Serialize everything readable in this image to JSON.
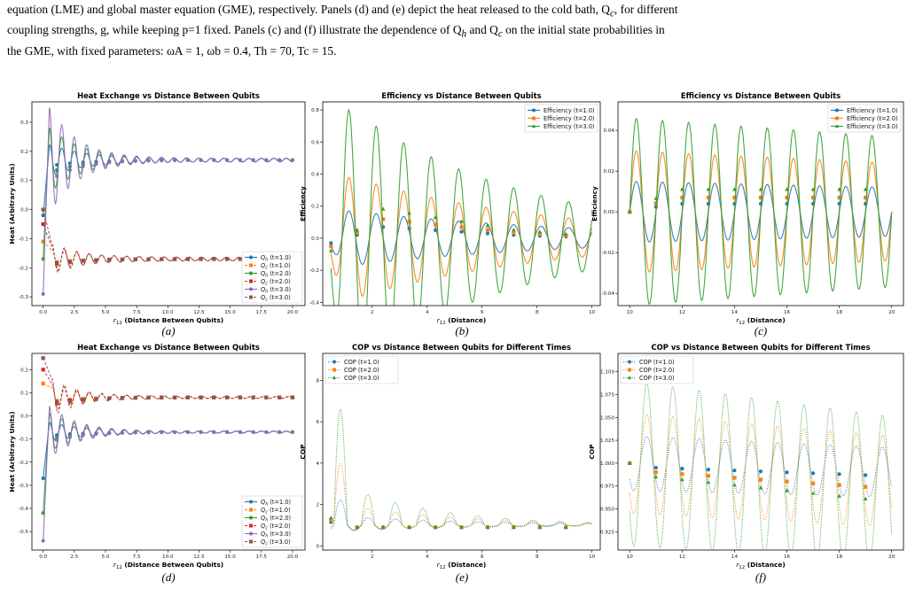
{
  "caption": {
    "line1": "equation (LME) and global master equation (GME), respectively. Panels (d) and (e) depict the heat released to the cold bath, Q",
    "line1_sub": "c",
    "line1_end": ", for different",
    "line2": "coupling strengths, g, while keeping p=1 fixed. Panels (c) and (f) illustrate the dependence of Q",
    "line2_sub1": "h",
    "line2_mid": " and Q",
    "line2_sub2": "c",
    "line2_end": " on the initial state probabilities in",
    "line3": "the GME, with fixed parameters: ω",
    "line3_rest": "A = 1, ω",
    "line3_rest2": "b = 0.4, T",
    "line3_rest3": "h = 70, T",
    "line3_rest4": "c = 15."
  },
  "colors": {
    "blue": "#1f77b4",
    "orange": "#ff7f0e",
    "green": "#2ca02c",
    "red": "#d62728",
    "purple": "#9467bd",
    "brown": "#8c564b"
  },
  "panel_labels": [
    "(a)",
    "(b)",
    "(c)",
    "(d)",
    "(e)",
    "(f)"
  ],
  "chart_data": [
    {
      "id": "a",
      "type": "line",
      "title": "Heat Exchange vs Distance Between Qubits",
      "xlabel": "r12 (Distance Between Qubits)",
      "ylabel": "Heat (Arbitrary Units)",
      "xlim": [
        -0.9,
        21
      ],
      "ylim": [
        -0.33,
        0.37
      ],
      "xticks": [
        0.0,
        2.5,
        5.0,
        7.5,
        10.0,
        12.5,
        15.0,
        17.5,
        20.0
      ],
      "xticklabels": [
        "0.0",
        "2.5",
        "5.0",
        "7.5",
        "10.0",
        "12.5",
        "15.0",
        "17.5",
        "20.0"
      ],
      "yticks": [
        -0.3,
        -0.2,
        -0.1,
        0.0,
        0.1,
        0.2,
        0.3
      ],
      "yticklabels": [
        "-0.3",
        "-0.2",
        "-0.1",
        "0.0",
        "0.1",
        "0.2",
        "0.3"
      ],
      "legend_pos": "lower-right",
      "series": [
        {
          "name": "Qh (t=1.0)",
          "color": "blue",
          "marker": "circle",
          "dash": "solid",
          "start": -0.02,
          "base": 0.17,
          "amp": 0.05,
          "decay": 0.35,
          "period": 1.0,
          "peak_x": 0.5
        },
        {
          "name": "Qc (t=1.0)",
          "color": "orange",
          "marker": "square",
          "dash": "dash",
          "start": -0.11,
          "base": -0.17,
          "amp": 0.03,
          "decay": 0.35,
          "period": 1.0,
          "peak_x": 0.7
        },
        {
          "name": "Qh (t=2.0)",
          "color": "green",
          "marker": "circle",
          "dash": "solid",
          "start": -0.17,
          "base": 0.17,
          "amp": 0.11,
          "decay": 0.4,
          "period": 1.0,
          "peak_x": 0.5
        },
        {
          "name": "Qc (t=2.0)",
          "color": "red",
          "marker": "square",
          "dash": "dash",
          "start": -0.05,
          "base": -0.17,
          "amp": 0.04,
          "decay": 0.4,
          "period": 1.0,
          "peak_x": 0.7
        },
        {
          "name": "Qh (t=3.0)",
          "color": "purple",
          "marker": "circle",
          "dash": "solid",
          "start": -0.29,
          "base": 0.17,
          "amp": 0.18,
          "decay": 0.45,
          "period": 1.0,
          "peak_x": 0.5
        },
        {
          "name": "Qc (t=3.0)",
          "color": "brown",
          "marker": "square",
          "dash": "dash",
          "start": 0.0,
          "base": -0.17,
          "amp": 0.05,
          "decay": 0.45,
          "period": 1.0,
          "peak_x": 0.7
        }
      ]
    },
    {
      "id": "b",
      "type": "line",
      "title": "Efficiency vs Distance Between Qubits",
      "xlabel": "r12 (Distance)",
      "ylabel": "Efficiency",
      "xlim": [
        0.2,
        10.3
      ],
      "ylim": [
        -0.42,
        0.85
      ],
      "xticks": [
        2,
        4,
        6,
        8,
        10
      ],
      "xticklabels": [
        "2",
        "4",
        "6",
        "8",
        "10"
      ],
      "yticks": [
        -0.4,
        -0.2,
        0.0,
        0.2,
        0.4,
        0.6,
        0.8
      ],
      "yticklabels": [
        "-0.4",
        "-0.2",
        "0.0",
        "0.2",
        "0.4",
        "0.6",
        "0.8"
      ],
      "legend_pos": "upper-right",
      "series": [
        {
          "name": "Efficiency (t=1.0)",
          "color": "blue",
          "marker": "circle",
          "dash": "solid",
          "amp": 0.17,
          "decay": 0.12,
          "period": 1.0,
          "x0": 0.5,
          "x1": 10
        },
        {
          "name": "Efficiency (t=2.0)",
          "color": "orange",
          "marker": "square",
          "dash": "solid",
          "amp": 0.38,
          "decay": 0.14,
          "period": 1.0,
          "x0": 0.5,
          "x1": 10
        },
        {
          "name": "Efficiency (t=3.0)",
          "color": "green",
          "marker": "triangle",
          "dash": "solid",
          "amp": 0.8,
          "decay": 0.16,
          "period": 1.0,
          "x0": 0.5,
          "x1": 10
        }
      ]
    },
    {
      "id": "c",
      "type": "line",
      "title": "Efficiency vs Distance Between Qubits",
      "xlabel": "r12 (Distance)",
      "ylabel": "Efficiency",
      "xlim": [
        9.55,
        20.45
      ],
      "ylim": [
        -0.046,
        0.054
      ],
      "xticks": [
        10,
        12,
        14,
        16,
        18,
        20
      ],
      "xticklabels": [
        "10",
        "12",
        "14",
        "16",
        "18",
        "20"
      ],
      "yticks": [
        -0.04,
        -0.02,
        0.0,
        0.02,
        0.04
      ],
      "yticklabels": [
        "-0.04",
        "-0.02",
        "0.00",
        "0.02",
        "0.04"
      ],
      "legend_pos": "upper-right",
      "series": [
        {
          "name": "Efficiency (t=1.0)",
          "color": "blue",
          "marker": "circle",
          "dash": "solid",
          "amp": 0.015,
          "period": 1.0
        },
        {
          "name": "Efficiency (t=2.0)",
          "color": "orange",
          "marker": "square",
          "dash": "solid",
          "amp": 0.03,
          "period": 1.0
        },
        {
          "name": "Efficiency (t=3.0)",
          "color": "green",
          "marker": "triangle",
          "dash": "solid",
          "amp": 0.046,
          "period": 1.0
        }
      ]
    },
    {
      "id": "d",
      "type": "line",
      "title": "Heat Exchange vs Distance Between Qubits",
      "xlabel": "r12 (Distance Between Qubits)",
      "ylabel": "Heat (Arbitrary Units)",
      "xlim": [
        -0.9,
        21
      ],
      "ylim": [
        -0.58,
        0.27
      ],
      "xticks": [
        0.0,
        2.5,
        5.0,
        7.5,
        10.0,
        12.5,
        15.0,
        17.5,
        20.0
      ],
      "xticklabels": [
        "0.0",
        "2.5",
        "5.0",
        "7.5",
        "10.0",
        "12.5",
        "15.0",
        "17.5",
        "20.0"
      ],
      "yticks": [
        -0.5,
        -0.4,
        -0.3,
        -0.2,
        -0.1,
        0.0,
        0.1,
        0.2
      ],
      "yticklabels": [
        "-0.5",
        "-0.4",
        "-0.3",
        "-0.2",
        "-0.1",
        "0.0",
        "0.1",
        "0.2"
      ],
      "legend_pos": "lower-right",
      "series": [
        {
          "name": "Qh (t=1.0)",
          "color": "blue",
          "marker": "circle",
          "dash": "solid",
          "start": -0.27,
          "base": -0.07,
          "amp": 0.04,
          "decay": 0.35,
          "period": 1.0,
          "peak_x": 0.5
        },
        {
          "name": "Qc (t=1.0)",
          "color": "orange",
          "marker": "square",
          "dash": "dash",
          "start": 0.14,
          "base": 0.08,
          "amp": 0.04,
          "decay": 0.35,
          "period": 1.0,
          "peak_x": 0.7
        },
        {
          "name": "Qh (t=2.0)",
          "color": "green",
          "marker": "circle",
          "dash": "solid",
          "start": -0.42,
          "base": -0.07,
          "amp": 0.08,
          "decay": 0.4,
          "period": 1.0,
          "peak_x": 0.5
        },
        {
          "name": "Qc (t=2.0)",
          "color": "red",
          "marker": "square",
          "dash": "dash",
          "start": 0.2,
          "base": 0.08,
          "amp": 0.06,
          "decay": 0.4,
          "period": 1.0,
          "peak_x": 0.7
        },
        {
          "name": "Qh (t=3.0)",
          "color": "purple",
          "marker": "circle",
          "dash": "solid",
          "start": -0.54,
          "base": -0.07,
          "amp": 0.11,
          "decay": 0.45,
          "period": 1.0,
          "peak_x": 0.5
        },
        {
          "name": "Qc (t=3.0)",
          "color": "brown",
          "marker": "square",
          "dash": "dash",
          "start": 0.25,
          "base": 0.08,
          "amp": 0.08,
          "decay": 0.45,
          "period": 1.0,
          "peak_x": 0.7
        }
      ]
    },
    {
      "id": "e",
      "type": "line",
      "title": "COP vs Distance Between Qubits for Different Times",
      "xlabel": "r12 (Distance)",
      "ylabel": "COP",
      "xlim": [
        0.2,
        10.3
      ],
      "ylim": [
        -0.2,
        9.3
      ],
      "xticks": [
        2,
        4,
        6,
        8,
        10
      ],
      "xticklabels": [
        "2",
        "4",
        "6",
        "8",
        "10"
      ],
      "yticks": [
        0,
        2,
        4,
        6,
        8
      ],
      "yticklabels": [
        "0",
        "2",
        "4",
        "6",
        "8"
      ],
      "legend_pos": "upper-left",
      "series": [
        {
          "name": "COP (t=1.0)",
          "color": "blue",
          "marker": "circle",
          "dash": "dot",
          "amp": 1.6,
          "decay": 0.2,
          "period": 1.0,
          "x0": 0.5,
          "x1": 10
        },
        {
          "name": "COP (t=2.0)",
          "color": "orange",
          "marker": "square",
          "dash": "dot",
          "amp": 3.8,
          "decay": 0.25,
          "period": 1.0,
          "x0": 0.5,
          "x1": 10
        },
        {
          "name": "COP (t=3.0)",
          "color": "green",
          "marker": "triangle",
          "dash": "dot",
          "amp": 7.0,
          "decay": 0.3,
          "period": 1.0,
          "x0": 0.5,
          "x1": 10
        }
      ]
    },
    {
      "id": "f",
      "type": "line",
      "title": "COP vs Distance Between Qubits for Different Times",
      "xlabel": "r12 (Distance)",
      "ylabel": "COP",
      "xlim": [
        9.55,
        20.45
      ],
      "ylim": [
        0.905,
        1.12
      ],
      "xticks": [
        10,
        12,
        14,
        16,
        18,
        20
      ],
      "xticklabels": [
        "10",
        "12",
        "14",
        "16",
        "18",
        "20"
      ],
      "yticks": [
        0.925,
        0.95,
        0.975,
        1.0,
        1.025,
        1.05,
        1.075,
        1.1
      ],
      "yticklabels": [
        "0.925",
        "0.950",
        "0.975",
        "1.000",
        "1.025",
        "1.050",
        "1.075",
        "1.100"
      ],
      "legend_pos": "upper-left",
      "series": [
        {
          "name": "COP (t=1.0)",
          "color": "blue",
          "marker": "circle",
          "dash": "dot",
          "amp": 0.03,
          "period": 1.0,
          "drift": 0.001
        },
        {
          "name": "COP (t=2.0)",
          "color": "orange",
          "marker": "square",
          "dash": "dot",
          "amp": 0.055,
          "period": 1.0,
          "drift": 0.002
        },
        {
          "name": "COP (t=3.0)",
          "color": "green",
          "marker": "triangle",
          "dash": "dot",
          "amp": 0.09,
          "period": 1.0,
          "drift": 0.003
        }
      ]
    }
  ]
}
